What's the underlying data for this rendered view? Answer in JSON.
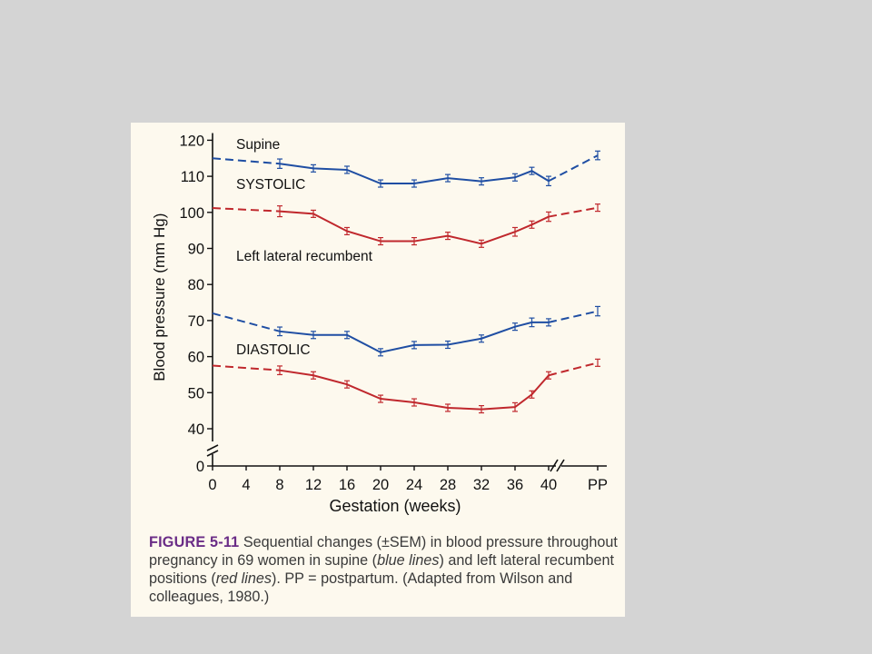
{
  "chart_data": {
    "type": "line",
    "xlabel": "Gestation (weeks)",
    "ylabel": "Blood pressure (mm Hg)",
    "x_ticks": [
      "0",
      "4",
      "8",
      "12",
      "16",
      "20",
      "24",
      "28",
      "32",
      "36",
      "40",
      "PP"
    ],
    "y_ticks": [
      "0",
      "40",
      "50",
      "60",
      "70",
      "80",
      "90",
      "100",
      "110",
      "120"
    ],
    "ylim": [
      40,
      120
    ],
    "axis_break": true,
    "annotations": {
      "supine": "Supine",
      "systolic": "SYSTOLIC",
      "left_lateral": "Left lateral recumbent",
      "diastolic": "DIASTOLIC"
    },
    "colors": {
      "supine": "#1f4ea3",
      "left_lateral": "#c0282d"
    },
    "series": [
      {
        "group": "SYSTOLIC",
        "position": "supine",
        "points": [
          [
            0,
            115
          ],
          [
            8,
            113.5
          ],
          [
            12,
            112.2
          ],
          [
            16,
            111.8
          ],
          [
            20,
            108
          ],
          [
            24,
            108
          ],
          [
            28,
            109.5
          ],
          [
            32,
            108.6
          ],
          [
            36,
            109.7
          ],
          [
            38,
            111.5
          ],
          [
            40,
            108.7
          ],
          [
            "PP",
            115.8
          ]
        ],
        "sem": [
          0,
          1.3,
          1.0,
          1.0,
          1.0,
          1.0,
          1.0,
          1.0,
          1.0,
          1.0,
          1.3,
          1.2
        ]
      },
      {
        "group": "SYSTOLIC",
        "position": "left lateral recumbent",
        "points": [
          [
            0,
            101.2
          ],
          [
            8,
            100.3
          ],
          [
            12,
            99.6
          ],
          [
            16,
            94.8
          ],
          [
            20,
            92
          ],
          [
            24,
            92
          ],
          [
            28,
            93.5
          ],
          [
            32,
            91.3
          ],
          [
            36,
            94.6
          ],
          [
            38,
            96.6
          ],
          [
            40,
            98.8
          ],
          [
            "PP",
            101.3
          ]
        ],
        "sem": [
          0,
          1.5,
          1.0,
          1.0,
          1.0,
          1.0,
          1.0,
          1.0,
          1.2,
          1.0,
          1.3,
          1.0
        ]
      },
      {
        "group": "DIASTOLIC",
        "position": "supine",
        "points": [
          [
            0,
            72
          ],
          [
            8,
            67
          ],
          [
            12,
            66
          ],
          [
            16,
            66
          ],
          [
            20,
            61.2
          ],
          [
            24,
            63.2
          ],
          [
            28,
            63.3
          ],
          [
            32,
            65
          ],
          [
            36,
            68.3
          ],
          [
            38,
            69.5
          ],
          [
            40,
            69.5
          ],
          [
            "PP",
            72.6
          ]
        ],
        "sem": [
          0,
          1.2,
          1.0,
          1.0,
          1.0,
          1.0,
          1.0,
          1.0,
          1.0,
          1.2,
          1.0,
          1.3
        ]
      },
      {
        "group": "DIASTOLIC",
        "position": "left lateral recumbent",
        "points": [
          [
            0,
            57.5
          ],
          [
            8,
            56.2
          ],
          [
            12,
            54.8
          ],
          [
            16,
            52.3
          ],
          [
            20,
            48.3
          ],
          [
            24,
            47.3
          ],
          [
            28,
            45.8
          ],
          [
            32,
            45.4
          ],
          [
            36,
            46
          ],
          [
            38,
            49.5
          ],
          [
            40,
            54.8
          ],
          [
            "PP",
            58.3
          ]
        ],
        "sem": [
          0,
          1.2,
          1.0,
          1.0,
          1.0,
          1.0,
          1.0,
          1.0,
          1.2,
          1.0,
          1.0,
          1.0
        ]
      }
    ]
  },
  "caption": {
    "label": "FIGURE 5-11",
    "text_parts": [
      " Sequential changes (±SEM) in blood pressure throughout pregnancy in 69 women in supine (",
      "blue lines",
      ") and left lateral recumbent positions (",
      "red lines",
      "). PP = postpartum. (Adapted from Wilson and colleagues, 1980.)"
    ]
  }
}
